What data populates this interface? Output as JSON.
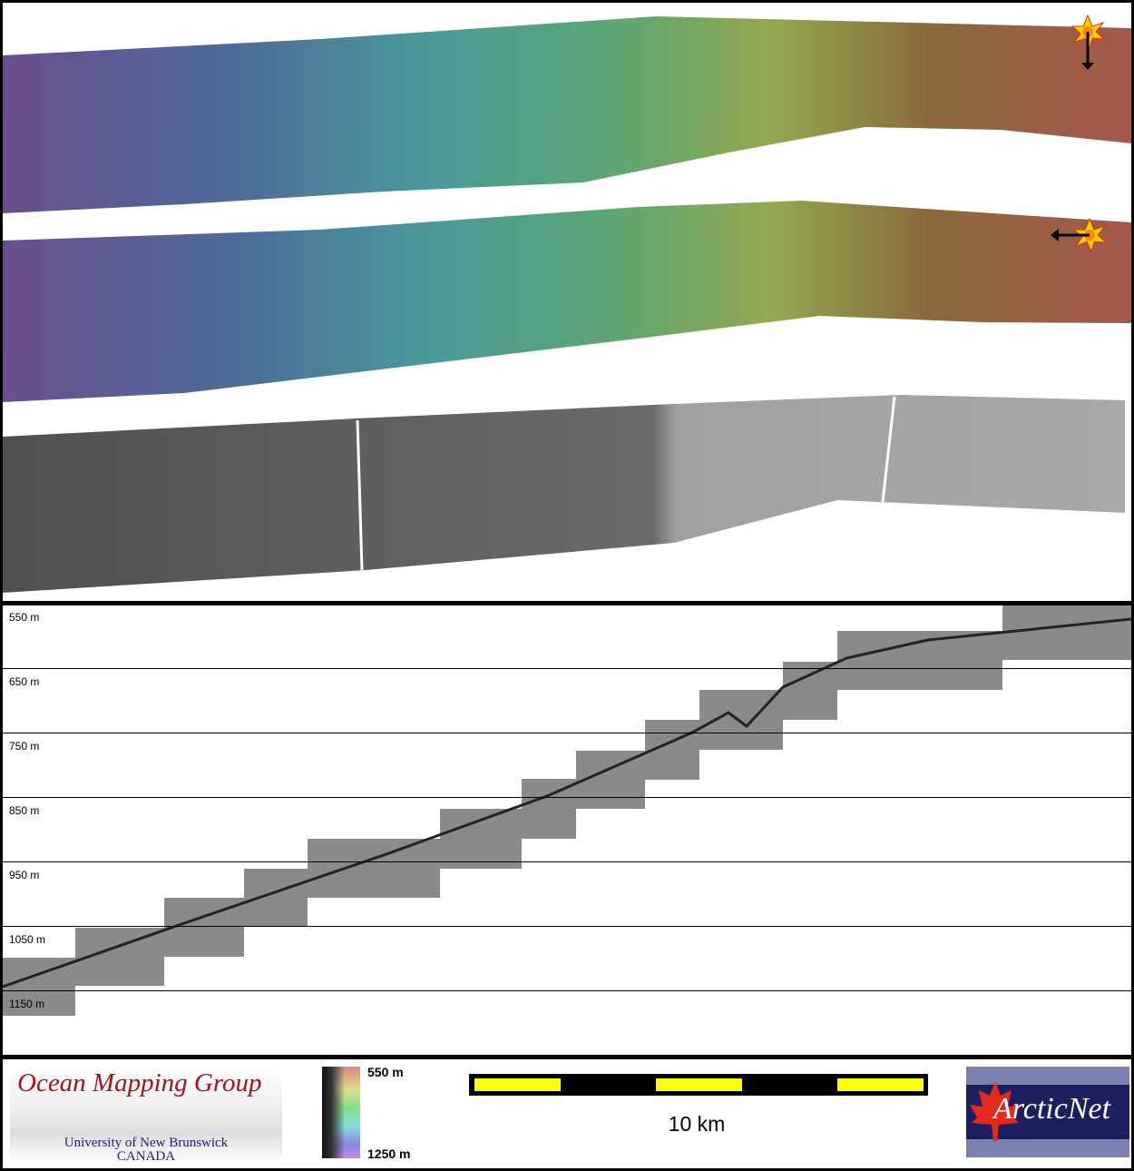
{
  "profile": {
    "depth_labels": [
      "550 m",
      "650 m",
      "750 m",
      "850 m",
      "950 m",
      "1050 m",
      "1150 m"
    ]
  },
  "legend": {
    "colorbar_top": "550 m",
    "colorbar_bottom": "1250 m",
    "scale_label": "10 km",
    "colors": {
      "scale_bar": "#000000",
      "scale_segment": "#ffff00"
    }
  },
  "logos": {
    "omg_title": "Ocean Mapping Group",
    "omg_line1": "University of New Brunswick",
    "omg_line2": "CANADA",
    "arcticnet": "ArcticNet"
  },
  "icons": {
    "sun_top": "sun-illumination-icon",
    "sun_bottom": "sun-illumination-icon"
  }
}
